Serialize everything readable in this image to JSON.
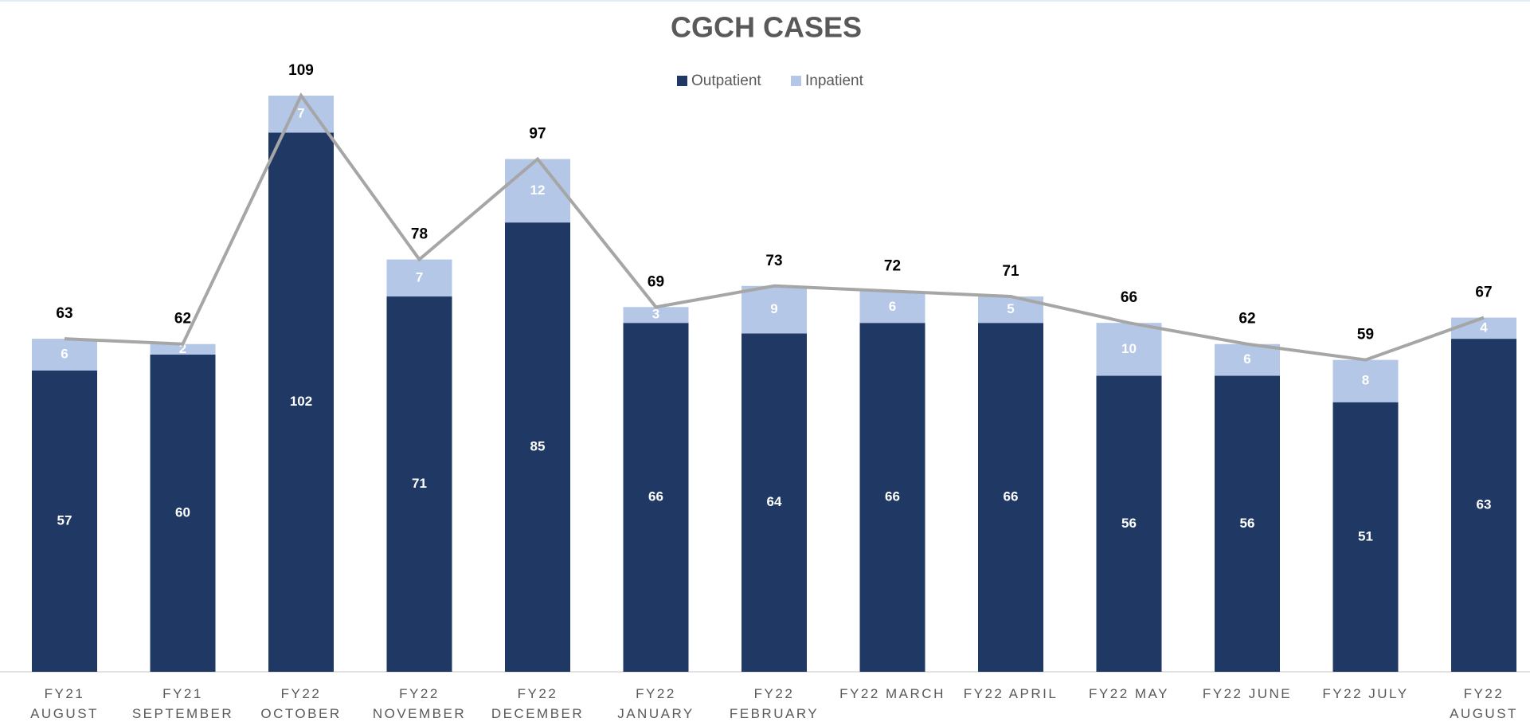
{
  "chart_data": {
    "type": "bar",
    "stacked": true,
    "title": "CGCH CASES",
    "categories": [
      "FY21\nAUGUST",
      "FY21\nSEPTEMBER",
      "FY22\nOCTOBER",
      "FY22\nNOVEMBER",
      "FY22\nDECEMBER",
      "FY22\nJANUARY",
      "FY22\nFEBRUARY",
      "FY22 MARCH",
      "FY22 APRIL",
      "FY22 MAY",
      "FY22 JUNE",
      "FY22 JULY",
      "FY22\nAUGUST"
    ],
    "series": [
      {
        "name": "Outpatient",
        "color": "#1f3864",
        "values": [
          57,
          60,
          102,
          71,
          85,
          66,
          64,
          66,
          66,
          56,
          56,
          51,
          63
        ]
      },
      {
        "name": "Inpatient",
        "color": "#b4c7e7",
        "values": [
          6,
          2,
          7,
          7,
          12,
          3,
          9,
          6,
          5,
          10,
          6,
          8,
          4
        ]
      }
    ],
    "totals": {
      "color": "#a6a6a6",
      "values": [
        63,
        62,
        109,
        78,
        97,
        69,
        73,
        72,
        71,
        66,
        62,
        59,
        67
      ]
    },
    "ylim": [
      0,
      120
    ],
    "legend": "top"
  }
}
